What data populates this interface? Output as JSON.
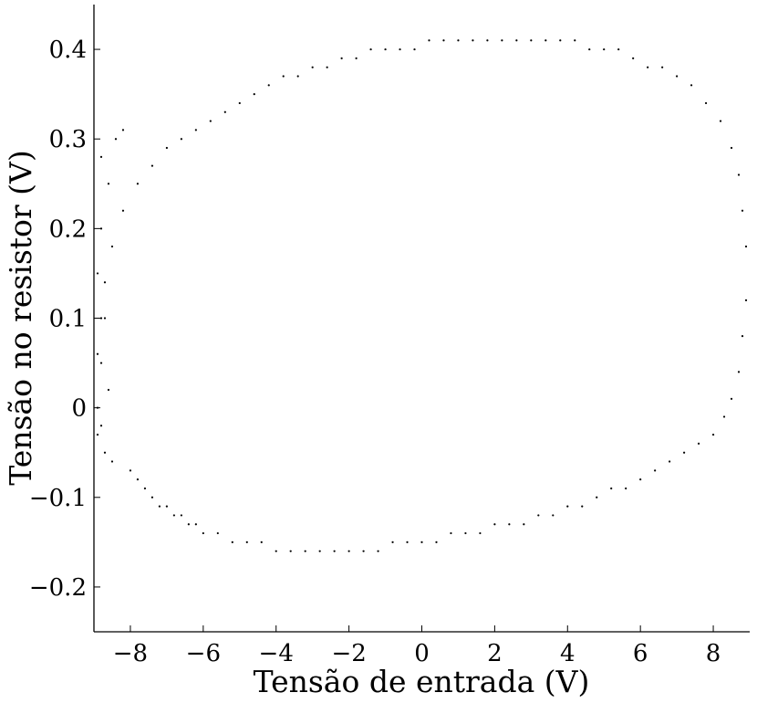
{
  "chart_data": {
    "type": "scatter",
    "title": "",
    "xlabel": "Tensão de entrada (V)",
    "ylabel": "Tensão no resistor (V)",
    "xlim": [
      -9,
      9
    ],
    "ylim": [
      -0.25,
      0.45
    ],
    "x_ticks": [
      -8,
      -6,
      -4,
      -2,
      0,
      2,
      4,
      6,
      8
    ],
    "x_tick_labels": [
      "−8",
      "−6",
      "−4",
      "−2",
      "0",
      "2",
      "4",
      "6",
      "8"
    ],
    "y_ticks": [
      -0.2,
      -0.1,
      0,
      0.1,
      0.2,
      0.3,
      0.4
    ],
    "y_tick_labels": [
      "−0.2",
      "−0.1",
      "0",
      "0.1",
      "0.2",
      "0.3",
      "0.4"
    ],
    "grid": false,
    "legend": "none",
    "marker_color": "#000000",
    "series": [
      {
        "values_note": "",
        "x": [
          -8.9,
          -8.8,
          -8.8,
          -8.7,
          -8.9,
          -8.8,
          -8.6,
          -8.9,
          -8.7,
          -8.5,
          -8.8,
          -8.4,
          -8.2,
          -8.6,
          -8.0,
          -7.8,
          -7.6,
          -7.4,
          -7.2,
          -7.0,
          -6.8,
          -6.6,
          -6.4,
          -6.2,
          -6.0,
          -5.6,
          -5.2,
          -4.8,
          -4.4,
          -4.0,
          -3.6,
          -3.2,
          -2.8,
          -2.4,
          -2.0,
          -1.6,
          -1.2,
          -0.8,
          -0.4,
          0.0,
          0.4,
          0.8,
          1.2,
          1.6,
          2.0,
          2.4,
          2.8,
          3.2,
          3.6,
          4.0,
          4.4,
          4.8,
          5.2,
          5.6,
          6.0,
          6.4,
          6.8,
          7.2,
          7.6,
          8.0,
          8.3,
          8.5,
          8.7,
          8.8,
          8.9,
          8.9,
          8.8,
          8.7,
          8.5,
          8.2,
          7.8,
          7.4,
          7.0,
          6.6,
          6.2,
          5.8,
          5.4,
          5.0,
          4.6,
          4.2,
          3.8,
          3.4,
          3.0,
          2.6,
          2.2,
          1.8,
          1.4,
          1.0,
          0.6,
          0.2,
          -0.2,
          -0.6,
          -1.0,
          -1.4,
          -1.8,
          -2.2,
          -2.6,
          -3.0,
          -3.4,
          -3.8,
          -4.2,
          -4.6,
          -5.0,
          -5.4,
          -5.8,
          -6.2,
          -6.6,
          -7.0,
          -7.4,
          -7.8,
          -8.2,
          -8.5,
          -8.7,
          -8.8,
          -8.9
        ],
        "y": [
          0.0,
          -0.02,
          0.05,
          0.1,
          0.15,
          0.2,
          0.25,
          -0.03,
          -0.05,
          -0.06,
          0.28,
          0.3,
          0.31,
          0.02,
          -0.07,
          -0.08,
          -0.09,
          -0.1,
          -0.11,
          -0.11,
          -0.12,
          -0.12,
          -0.13,
          -0.13,
          -0.14,
          -0.14,
          -0.15,
          -0.15,
          -0.15,
          -0.16,
          -0.16,
          -0.16,
          -0.16,
          -0.16,
          -0.16,
          -0.16,
          -0.16,
          -0.15,
          -0.15,
          -0.15,
          -0.15,
          -0.14,
          -0.14,
          -0.14,
          -0.13,
          -0.13,
          -0.13,
          -0.12,
          -0.12,
          -0.11,
          -0.11,
          -0.1,
          -0.09,
          -0.09,
          -0.08,
          -0.07,
          -0.06,
          -0.05,
          -0.04,
          -0.03,
          -0.01,
          0.01,
          0.04,
          0.08,
          0.12,
          0.18,
          0.22,
          0.26,
          0.29,
          0.32,
          0.34,
          0.36,
          0.37,
          0.38,
          0.38,
          0.39,
          0.4,
          0.4,
          0.4,
          0.41,
          0.41,
          0.41,
          0.41,
          0.41,
          0.41,
          0.41,
          0.41,
          0.41,
          0.41,
          0.41,
          0.4,
          0.4,
          0.4,
          0.4,
          0.39,
          0.39,
          0.38,
          0.38,
          0.37,
          0.37,
          0.36,
          0.35,
          0.34,
          0.33,
          0.32,
          0.31,
          0.3,
          0.29,
          0.27,
          0.25,
          0.22,
          0.18,
          0.14,
          0.1,
          0.06
        ]
      }
    ]
  }
}
